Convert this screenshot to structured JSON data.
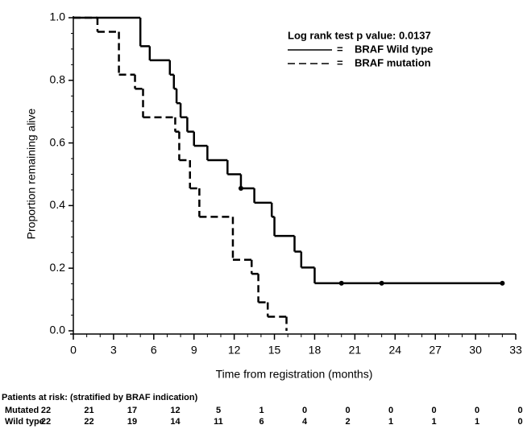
{
  "chart_data": {
    "type": "km",
    "xlabel": "Time from registration (months)",
    "ylabel": "Proportion remaining alive",
    "annotation": "Log rank test p value: 0.0137",
    "legend_separator": "=",
    "xlim": [
      0,
      33
    ],
    "ylim": [
      0,
      1
    ],
    "xticks": [
      0,
      3,
      6,
      9,
      12,
      15,
      18,
      21,
      24,
      27,
      30,
      33
    ],
    "yticks": [
      {
        "value": 0,
        "label": "0.0"
      },
      0.2,
      0.4,
      0.6,
      0.8,
      {
        "value": 1,
        "label": "1.0"
      }
    ],
    "series": [
      {
        "name": "BRAF Wild type",
        "color": "#000000",
        "dash": "solid",
        "x": [
          0,
          5,
          5.7,
          7.2,
          7.5,
          7.7,
          8.0,
          8.5,
          9.0,
          10.0,
          11.5,
          12.5,
          13.5,
          14.8,
          15.0,
          16.5,
          17.0,
          18.0
        ],
        "values": [
          1,
          0.909,
          0.864,
          0.818,
          0.773,
          0.727,
          0.682,
          0.636,
          0.591,
          0.545,
          0.5,
          0.455,
          0.409,
          0.364,
          0.303,
          0.253,
          0.202,
          0.152
        ],
        "censored_x": [
          12.5,
          20,
          23,
          32
        ],
        "censored_values": [
          0.455,
          0.152,
          0.152,
          0.152
        ]
      },
      {
        "name": "BRAF mutation",
        "color": "#000000",
        "dash": "dashed",
        "x": [
          0,
          1.8,
          3.4,
          4.6,
          5.2,
          7.6,
          7.9,
          8.7,
          9.4,
          11.9,
          13.3,
          13.8,
          14.5,
          15.9
        ],
        "values": [
          1,
          0.955,
          0.818,
          0.773,
          0.682,
          0.636,
          0.545,
          0.455,
          0.364,
          0.227,
          0.182,
          0.091,
          0.045,
          0
        ],
        "censored_x": [],
        "censored_values": []
      }
    ],
    "risk_table": {
      "title": "Patients at risk: (stratified by BRAF indication)",
      "rows": [
        {
          "label": "Mutated",
          "values": [
            22,
            21,
            17,
            12,
            5,
            1,
            0,
            0,
            0,
            0,
            0,
            0
          ]
        },
        {
          "label": "Wild type",
          "values": [
            22,
            22,
            19,
            14,
            11,
            6,
            4,
            2,
            1,
            1,
            1,
            0
          ]
        }
      ]
    }
  }
}
